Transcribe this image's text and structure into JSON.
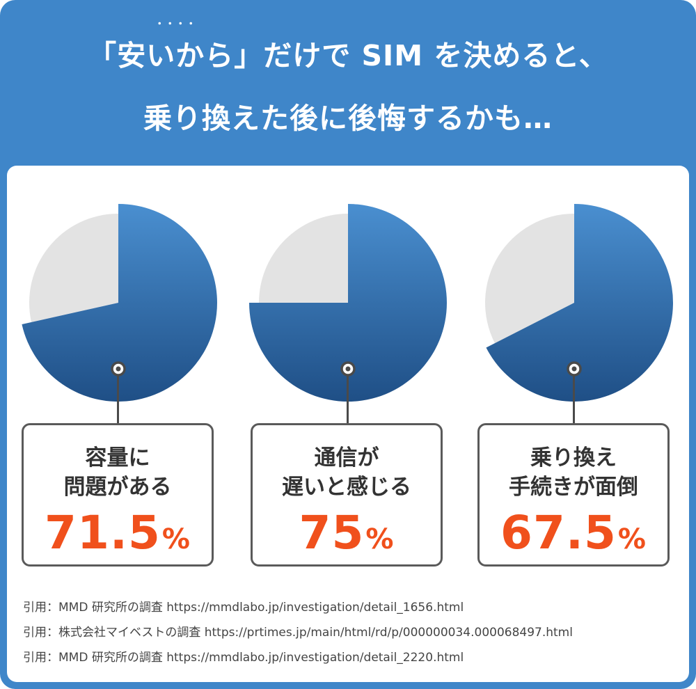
{
  "headline": {
    "line1_open": "「",
    "line1_emphasis": "安いから",
    "line1_emphasis_dots": "・・・・",
    "line1_close": "」",
    "line1_rest": "だけで SIM を決めると、",
    "line2": "乗り換えた後に後悔するかも…"
  },
  "chart_data": [
    {
      "type": "pie",
      "title": "",
      "label_line1": "容量に",
      "label_line2": "問題がある",
      "value": 71.5,
      "unit": "%",
      "value_text": "71.5",
      "slices": [
        {
          "value": 71.5,
          "color": "#3a78b8"
        },
        {
          "value": 28.5,
          "color": "#e3e3e3"
        }
      ]
    },
    {
      "type": "pie",
      "title": "",
      "label_line1": "通信が",
      "label_line2": "遅いと感じる",
      "value": 75,
      "unit": "%",
      "value_text": "75",
      "slices": [
        {
          "value": 75,
          "color": "#3a78b8"
        },
        {
          "value": 25,
          "color": "#e3e3e3"
        }
      ]
    },
    {
      "type": "pie",
      "title": "",
      "label_line1": "乗り換え",
      "label_line2": "手続きが面倒",
      "value": 67.5,
      "unit": "%",
      "value_text": "67.5",
      "slices": [
        {
          "value": 67.5,
          "color": "#3a78b8"
        },
        {
          "value": 32.5,
          "color": "#e3e3e3"
        }
      ]
    }
  ],
  "citations": [
    "引用：MMD 研究所の調査 https://mmdlabo.jp/investigation/detail_1656.html",
    "引用：株式会社マイベストの調査 https://prtimes.jp/main/html/rd/p/000000034.000068497.html",
    "引用：MMD 研究所の調査 https://mmdlabo.jp/investigation/detail_2220.html"
  ],
  "colors": {
    "background": "#3f86c9",
    "filled_top": "#4a8fd0",
    "filled_bottom": "#1f4f86",
    "remainder": "#e3e3e3",
    "value_text": "#f0501c",
    "box_border": "#5a5a5a"
  }
}
